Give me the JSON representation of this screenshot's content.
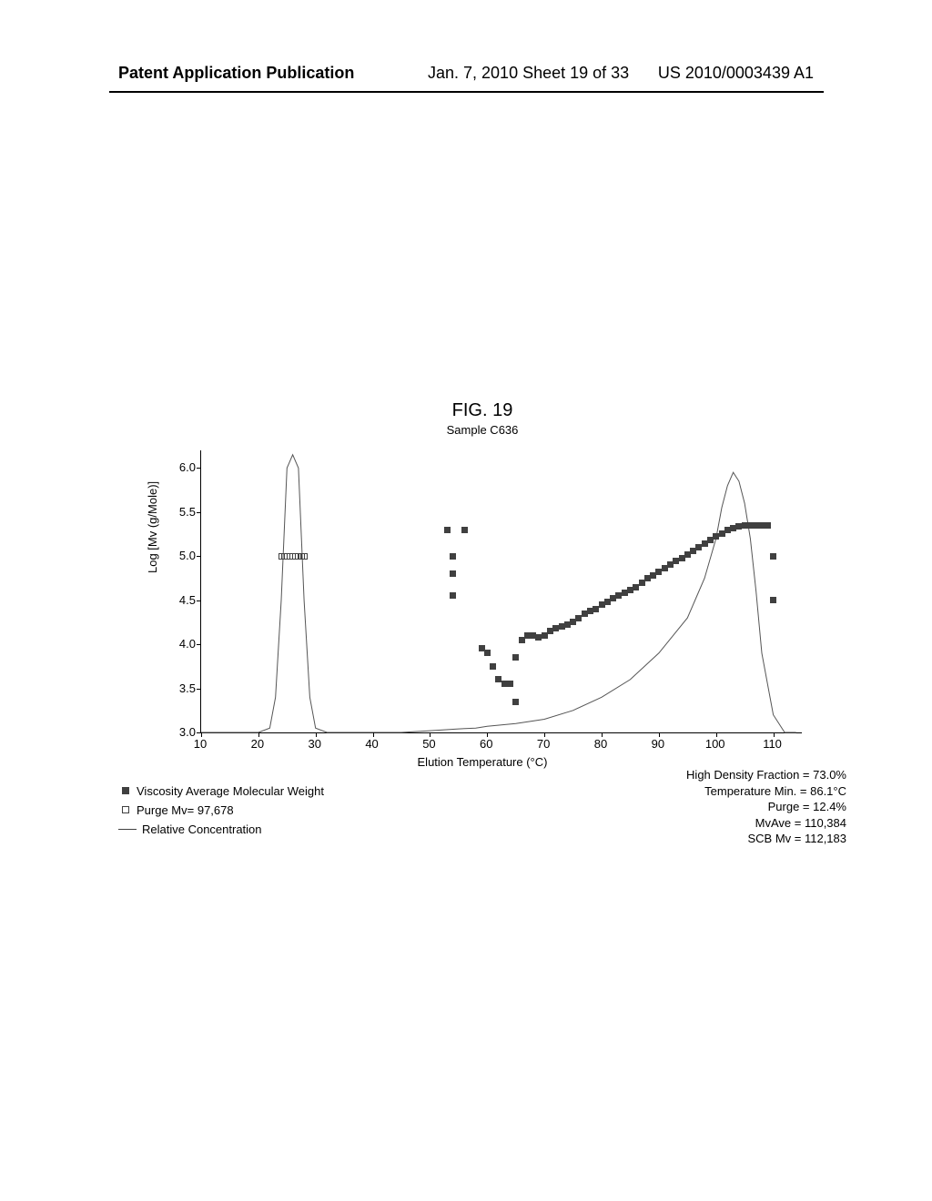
{
  "header": {
    "left": "Patent Application Publication",
    "center": "Jan. 7, 2010  Sheet 19 of 33",
    "right": "US 2010/0003439 A1"
  },
  "figure": {
    "title": "FIG. 19",
    "subtitle": "Sample C636",
    "y_label": "Log [Mv (g/Mole)]",
    "x_label": "Elution Temperature (°C)",
    "x_ticks": [
      10,
      20,
      30,
      40,
      50,
      60,
      70,
      80,
      90,
      100,
      110
    ],
    "y_ticks": [
      3.0,
      3.5,
      4.0,
      4.5,
      5.0,
      5.5,
      6.0
    ],
    "xlim": [
      10,
      115
    ],
    "ylim": [
      3.0,
      6.2
    ],
    "line_color": "#555555",
    "marker_color": "#404040",
    "marker_size": 7,
    "curve": [
      [
        10,
        3.0
      ],
      [
        20,
        3.0
      ],
      [
        22,
        3.05
      ],
      [
        23,
        3.4
      ],
      [
        24,
        4.5
      ],
      [
        25,
        6.0
      ],
      [
        26,
        6.15
      ],
      [
        27,
        6.0
      ],
      [
        28,
        4.5
      ],
      [
        29,
        3.4
      ],
      [
        30,
        3.05
      ],
      [
        32,
        3.0
      ],
      [
        40,
        3.0
      ],
      [
        45,
        3.0
      ],
      [
        50,
        3.02
      ],
      [
        55,
        3.04
      ],
      [
        58,
        3.05
      ],
      [
        60,
        3.07
      ],
      [
        65,
        3.1
      ],
      [
        70,
        3.15
      ],
      [
        75,
        3.25
      ],
      [
        80,
        3.4
      ],
      [
        85,
        3.6
      ],
      [
        90,
        3.9
      ],
      [
        95,
        4.3
      ],
      [
        98,
        4.75
      ],
      [
        100,
        5.2
      ],
      [
        101,
        5.55
      ],
      [
        102,
        5.8
      ],
      [
        103,
        5.95
      ],
      [
        104,
        5.85
      ],
      [
        105,
        5.6
      ],
      [
        106,
        5.2
      ],
      [
        107,
        4.6
      ],
      [
        108,
        3.9
      ],
      [
        110,
        3.2
      ],
      [
        112,
        3.0
      ],
      [
        114,
        3.0
      ]
    ],
    "purge_points": [
      [
        24,
        5.0
      ],
      [
        24.5,
        5.0
      ],
      [
        25,
        5.0
      ],
      [
        25.5,
        5.0
      ],
      [
        26,
        5.0
      ],
      [
        26.5,
        5.0
      ],
      [
        27,
        5.0
      ],
      [
        27.5,
        5.0
      ],
      [
        28,
        5.0
      ]
    ],
    "viscosity_points": [
      [
        53,
        5.3
      ],
      [
        56,
        5.3
      ],
      [
        54,
        5.0
      ],
      [
        54,
        4.8
      ],
      [
        54,
        4.55
      ],
      [
        59,
        3.95
      ],
      [
        60,
        3.9
      ],
      [
        61,
        3.75
      ],
      [
        62,
        3.6
      ],
      [
        63,
        3.55
      ],
      [
        64,
        3.55
      ],
      [
        65,
        3.35
      ],
      [
        65,
        3.85
      ],
      [
        66,
        4.05
      ],
      [
        67,
        4.1
      ],
      [
        68,
        4.1
      ],
      [
        69,
        4.08
      ],
      [
        70,
        4.1
      ],
      [
        71,
        4.15
      ],
      [
        72,
        4.18
      ],
      [
        73,
        4.2
      ],
      [
        74,
        4.22
      ],
      [
        75,
        4.25
      ],
      [
        76,
        4.3
      ],
      [
        77,
        4.35
      ],
      [
        78,
        4.38
      ],
      [
        79,
        4.4
      ],
      [
        80,
        4.45
      ],
      [
        81,
        4.48
      ],
      [
        82,
        4.52
      ],
      [
        83,
        4.55
      ],
      [
        84,
        4.58
      ],
      [
        85,
        4.62
      ],
      [
        86,
        4.65
      ],
      [
        87,
        4.7
      ],
      [
        88,
        4.75
      ],
      [
        89,
        4.78
      ],
      [
        90,
        4.82
      ],
      [
        91,
        4.86
      ],
      [
        92,
        4.9
      ],
      [
        93,
        4.95
      ],
      [
        94,
        4.98
      ],
      [
        95,
        5.02
      ],
      [
        96,
        5.06
      ],
      [
        97,
        5.1
      ],
      [
        98,
        5.14
      ],
      [
        99,
        5.18
      ],
      [
        100,
        5.22
      ],
      [
        101,
        5.26
      ],
      [
        102,
        5.3
      ],
      [
        103,
        5.32
      ],
      [
        104,
        5.34
      ],
      [
        105,
        5.35
      ],
      [
        106,
        5.35
      ],
      [
        107,
        5.35
      ],
      [
        108,
        5.35
      ],
      [
        109,
        5.35
      ],
      [
        110,
        5.0
      ],
      [
        110,
        4.5
      ]
    ],
    "legend": {
      "viscosity": "Viscosity Average Molecular Weight",
      "purge": "Purge Mv= 97,678",
      "concentration": "Relative Concentration"
    },
    "stats": {
      "s1": "High Density Fraction = 73.0%",
      "s2": "Temperature Min. = 86.1°C",
      "s3": "Purge = 12.4%",
      "s4": "MvAve = 110,384",
      "s5": "SCB Mv = 112,183"
    }
  }
}
